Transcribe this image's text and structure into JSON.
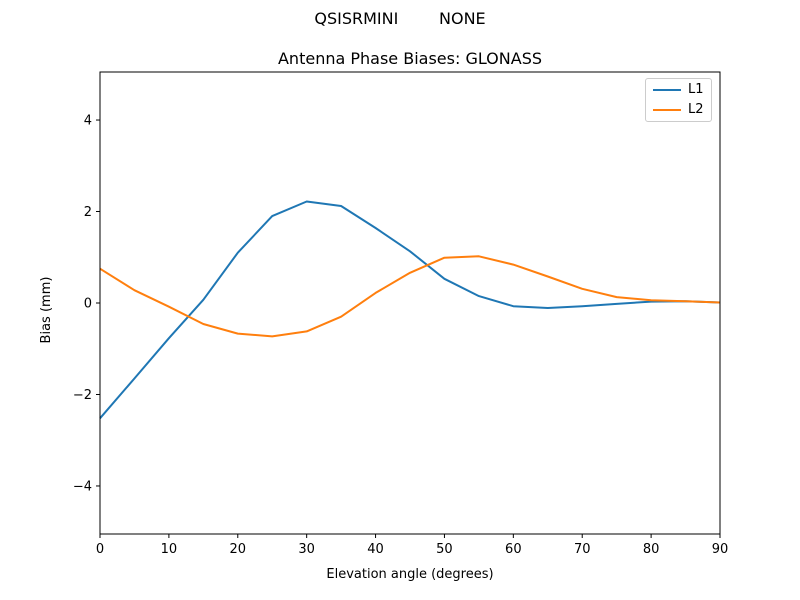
{
  "figure": {
    "suptitle": "QSISRMINI        NONE",
    "background": "#ffffff",
    "text_color": "#000000",
    "spine_color": "#000000"
  },
  "chart_data": {
    "type": "line",
    "suptitle": "QSISRMINI        NONE",
    "title": "Antenna Phase Biases: GLONASS",
    "xlabel": "Elevation angle (degrees)",
    "ylabel": "Bias (mm)",
    "xlim": [
      0,
      90
    ],
    "ylim": [
      -5.05,
      5.05
    ],
    "xticks": [
      0,
      10,
      20,
      30,
      40,
      50,
      60,
      70,
      80,
      90
    ],
    "yticks": [
      -4,
      -2,
      0,
      2,
      4
    ],
    "grid": false,
    "legend_position": "upper right",
    "x": [
      0,
      5,
      10,
      15,
      20,
      25,
      30,
      35,
      40,
      45,
      50,
      55,
      60,
      65,
      70,
      75,
      80,
      85,
      90
    ],
    "series": [
      {
        "name": "L1",
        "color": "#1f77b4",
        "values": [
          -2.52,
          -1.65,
          -0.77,
          0.07,
          1.1,
          1.9,
          2.22,
          2.12,
          1.64,
          1.13,
          0.53,
          0.15,
          -0.07,
          -0.11,
          -0.07,
          -0.02,
          0.03,
          0.04,
          0.01
        ]
      },
      {
        "name": "L2",
        "color": "#ff7f0e",
        "values": [
          0.75,
          0.28,
          -0.08,
          -0.46,
          -0.67,
          -0.73,
          -0.62,
          -0.3,
          0.22,
          0.66,
          0.99,
          1.02,
          0.84,
          0.58,
          0.31,
          0.13,
          0.06,
          0.04,
          0.01
        ]
      }
    ]
  }
}
